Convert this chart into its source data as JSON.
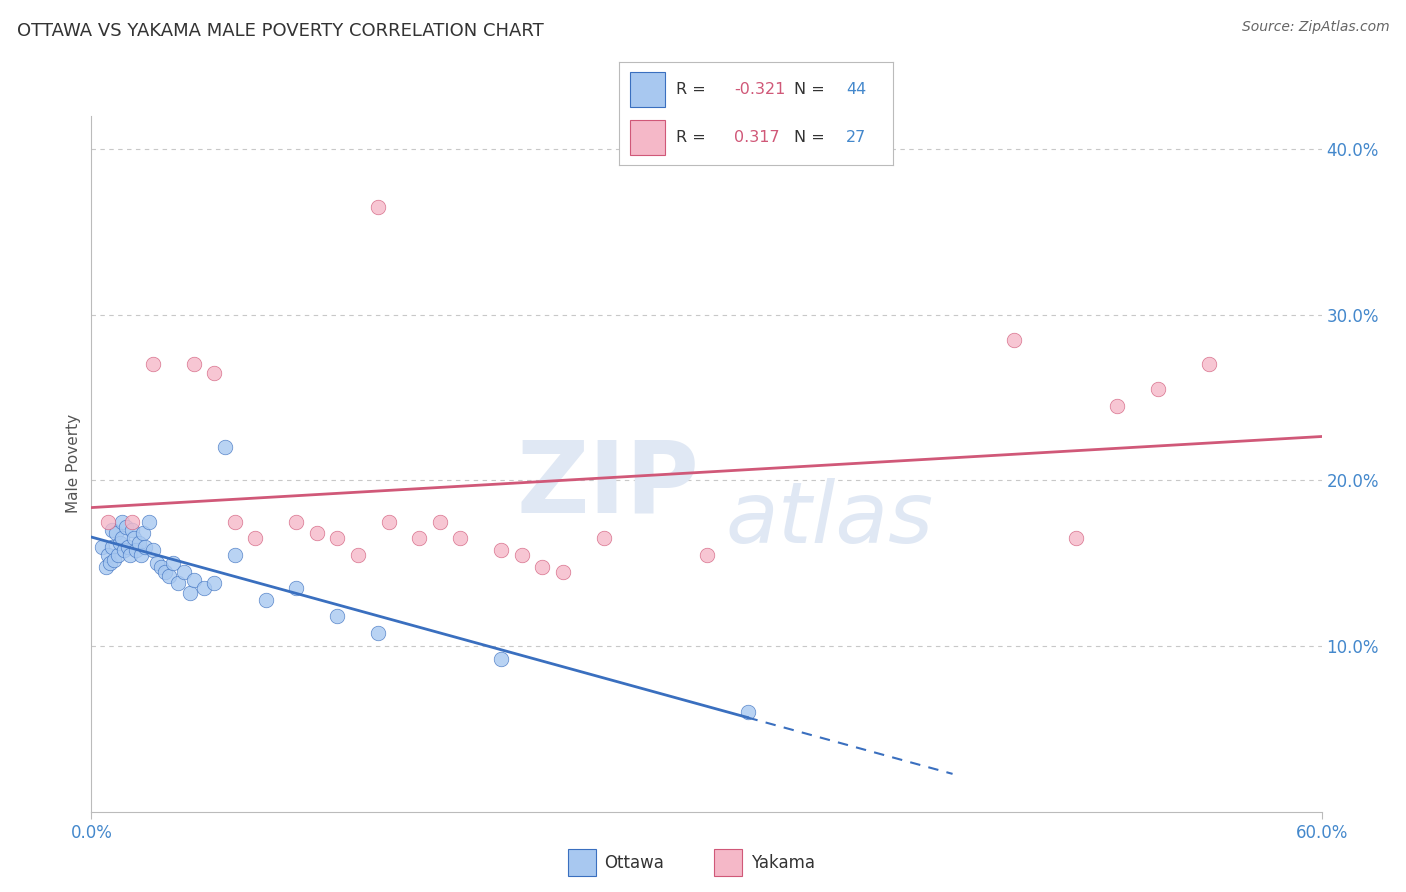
{
  "title": "OTTAWA VS YAKAMA MALE POVERTY CORRELATION CHART",
  "source": "Source: ZipAtlas.com",
  "ylabel": "Male Poverty",
  "xlim": [
    0.0,
    0.6
  ],
  "ylim": [
    0.0,
    0.42
  ],
  "yticks": [
    0.0,
    0.1,
    0.2,
    0.3,
    0.4
  ],
  "ytick_labels": [
    "",
    "10.0%",
    "20.0%",
    "30.0%",
    "40.0%"
  ],
  "ottawa_R": -0.321,
  "ottawa_N": 44,
  "yakama_R": 0.317,
  "yakama_N": 27,
  "ottawa_color": "#A8C8F0",
  "yakama_color": "#F5B8C8",
  "ottawa_trend_color": "#3A6FBF",
  "yakama_trend_color": "#D05878",
  "background_color": "#FFFFFF",
  "grid_color": "#C8C8C8",
  "title_color": "#333333",
  "axis_label_color": "#4488CC",
  "watermark_color": "#E0E8F4",
  "legend_R_color": "#D05878",
  "legend_N_color": "#4488CC",
  "ottawa_x": [
    0.005,
    0.007,
    0.008,
    0.009,
    0.01,
    0.01,
    0.011,
    0.012,
    0.013,
    0.014,
    0.015,
    0.015,
    0.016,
    0.017,
    0.018,
    0.019,
    0.02,
    0.021,
    0.022,
    0.023,
    0.024,
    0.025,
    0.026,
    0.028,
    0.03,
    0.032,
    0.034,
    0.036,
    0.038,
    0.04,
    0.042,
    0.045,
    0.048,
    0.05,
    0.055,
    0.06,
    0.065,
    0.07,
    0.085,
    0.1,
    0.12,
    0.14,
    0.2,
    0.32
  ],
  "ottawa_y": [
    0.16,
    0.148,
    0.155,
    0.15,
    0.16,
    0.17,
    0.152,
    0.168,
    0.155,
    0.162,
    0.165,
    0.175,
    0.158,
    0.172,
    0.16,
    0.155,
    0.17,
    0.165,
    0.158,
    0.162,
    0.155,
    0.168,
    0.16,
    0.175,
    0.158,
    0.15,
    0.148,
    0.145,
    0.142,
    0.15,
    0.138,
    0.145,
    0.132,
    0.14,
    0.135,
    0.138,
    0.22,
    0.155,
    0.128,
    0.135,
    0.118,
    0.108,
    0.092,
    0.06
  ],
  "yakama_x": [
    0.008,
    0.02,
    0.03,
    0.05,
    0.06,
    0.07,
    0.08,
    0.1,
    0.11,
    0.12,
    0.13,
    0.14,
    0.145,
    0.16,
    0.17,
    0.18,
    0.2,
    0.21,
    0.22,
    0.23,
    0.25,
    0.3,
    0.45,
    0.48,
    0.5,
    0.52,
    0.545
  ],
  "yakama_y": [
    0.175,
    0.175,
    0.27,
    0.27,
    0.265,
    0.175,
    0.165,
    0.175,
    0.168,
    0.165,
    0.155,
    0.365,
    0.175,
    0.165,
    0.175,
    0.165,
    0.158,
    0.155,
    0.148,
    0.145,
    0.165,
    0.155,
    0.285,
    0.165,
    0.245,
    0.255,
    0.27
  ],
  "ottawa_trend_start_x": 0.0,
  "ottawa_trend_end_x": 0.32,
  "ottawa_trend_dash_end_x": 0.42,
  "yakama_trend_start_x": 0.0,
  "yakama_trend_end_x": 0.6
}
